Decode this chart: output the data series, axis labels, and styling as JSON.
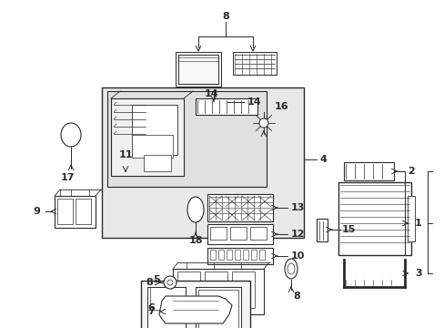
{
  "bg_color": "#ffffff",
  "lc": "#2a2a2a",
  "figsize": [
    4.89,
    3.6
  ],
  "dpi": 100,
  "xlim": [
    0,
    489
  ],
  "ylim": [
    0,
    360
  ]
}
